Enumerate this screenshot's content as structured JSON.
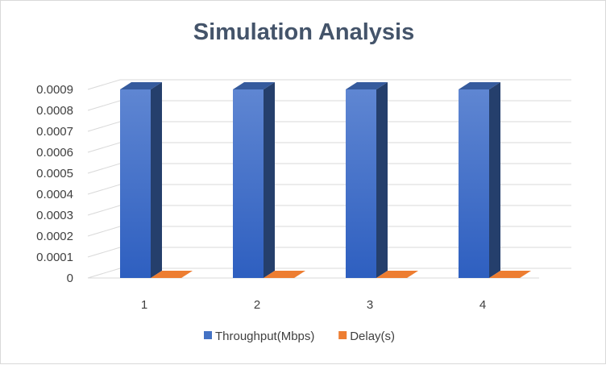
{
  "chart_data": {
    "type": "bar",
    "title": "Simulation Analysis",
    "categories": [
      "1",
      "2",
      "3",
      "4"
    ],
    "series": [
      {
        "name": "Throughput(Mbps)",
        "values": [
          0.0009,
          0.0009,
          0.0009,
          0.0009
        ],
        "color": "#4472c4"
      },
      {
        "name": "Delay(s)",
        "values": [
          0,
          0,
          0,
          0
        ],
        "color": "#ed7d31"
      }
    ],
    "ylim": [
      0,
      0.0009
    ],
    "yticks": [
      "0",
      "0.0001",
      "0.0002",
      "0.0003",
      "0.0004",
      "0.0005",
      "0.0006",
      "0.0007",
      "0.0008",
      "0.0009"
    ],
    "grid": true,
    "legend": "bottom",
    "style": "3d-column"
  }
}
